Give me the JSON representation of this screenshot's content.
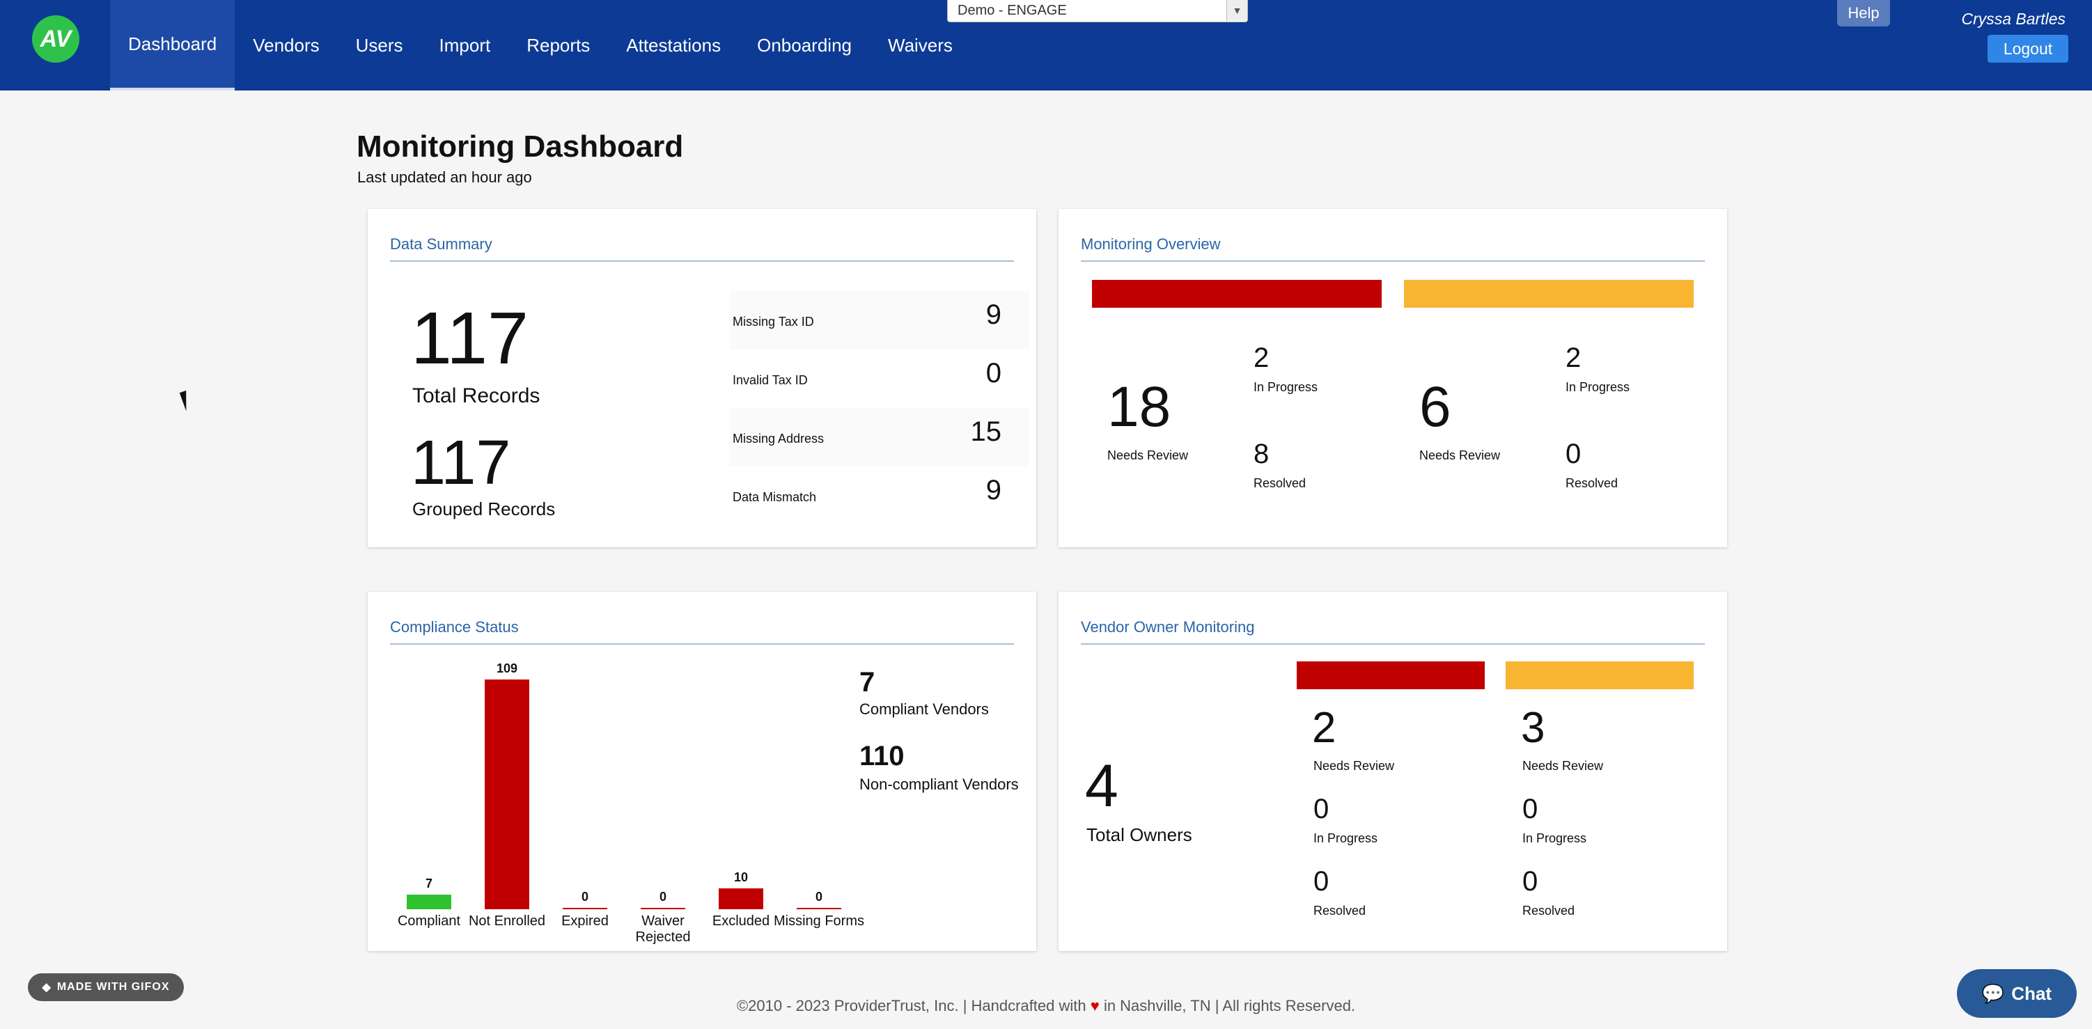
{
  "nav": {
    "logo_text": "AV",
    "items": [
      {
        "label": "Dashboard",
        "active": true
      },
      {
        "label": "Vendors"
      },
      {
        "label": "Users"
      },
      {
        "label": "Import"
      },
      {
        "label": "Reports"
      },
      {
        "label": "Attestations"
      },
      {
        "label": "Onboarding"
      },
      {
        "label": "Waivers"
      }
    ],
    "org_select": "Demo - ENGAGE",
    "help": "Help",
    "user": "Cryssa Bartles",
    "logout": "Logout"
  },
  "page": {
    "title": "Monitoring Dashboard",
    "subtitle": "Last updated an hour ago"
  },
  "data_summary": {
    "title": "Data Summary",
    "total_records": "117",
    "total_records_label": "Total Records",
    "grouped_records": "117",
    "grouped_records_label": "Grouped Records",
    "rows": [
      {
        "label": "Missing Tax ID",
        "value": "9"
      },
      {
        "label": "Invalid Tax ID",
        "value": "0"
      },
      {
        "label": "Missing Address",
        "value": "15"
      },
      {
        "label": "Data Mismatch",
        "value": "9"
      }
    ]
  },
  "monitoring_overview": {
    "title": "Monitoring Overview",
    "groups": [
      {
        "color": "#c00000",
        "needs_review": "18",
        "needs_review_label": "Needs Review",
        "in_progress": "2",
        "in_progress_label": "In Progress",
        "resolved": "8",
        "resolved_label": "Resolved"
      },
      {
        "color": "#f8b531",
        "needs_review": "6",
        "needs_review_label": "Needs Review",
        "in_progress": "2",
        "in_progress_label": "In Progress",
        "resolved": "0",
        "resolved_label": "Resolved"
      }
    ]
  },
  "compliance": {
    "title": "Compliance Status",
    "compliant_vendors": "7",
    "compliant_vendors_label": "Compliant Vendors",
    "noncompliant_vendors": "110",
    "noncompliant_vendors_label": "Non-compliant Vendors"
  },
  "vendor_owner": {
    "title": "Vendor Owner Monitoring",
    "total_owners": "4",
    "total_owners_label": "Total Owners",
    "groups": [
      {
        "color": "#c00000",
        "needs_review": "2",
        "needs_review_label": "Needs Review",
        "in_progress": "0",
        "in_progress_label": "In Progress",
        "resolved": "0",
        "resolved_label": "Resolved"
      },
      {
        "color": "#f8b531",
        "needs_review": "3",
        "needs_review_label": "Needs Review",
        "in_progress": "0",
        "in_progress_label": "In Progress",
        "resolved": "0",
        "resolved_label": "Resolved"
      }
    ]
  },
  "chart_data": {
    "type": "bar",
    "categories": [
      "Compliant",
      "Not Enrolled",
      "Expired",
      "Waiver Rejected",
      "Excluded",
      "Missing Forms"
    ],
    "values": [
      7,
      109,
      0,
      0,
      10,
      0
    ],
    "colors": [
      "#2ec22e",
      "#c00000",
      "#c00000",
      "#c00000",
      "#c00000",
      "#c00000"
    ],
    "ylim": [
      0,
      109
    ]
  },
  "footer": {
    "left": "©2010 - 2023 ProviderTrust, Inc.  |  Handcrafted with",
    "heart": "♥",
    "right": "in Nashville, TN  |  All rights Reserved."
  },
  "widgets": {
    "gifox": "MADE WITH GIFOX",
    "chat": "Chat"
  }
}
